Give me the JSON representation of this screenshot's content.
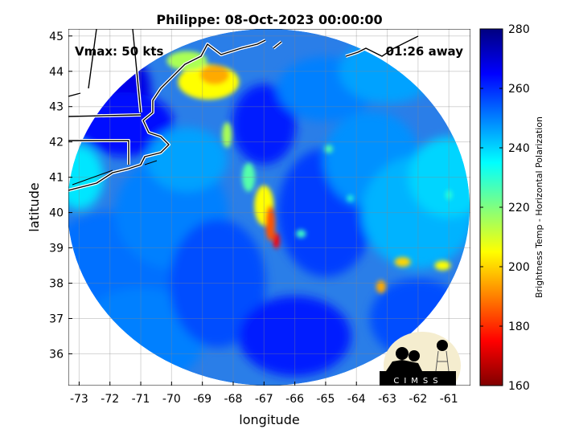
{
  "chart_data": {
    "type": "heatmap",
    "title": "Philippe: 08-Oct-2023 00:00:00",
    "xlabel": "longitude",
    "ylabel": "latitude",
    "xlim": [
      -73.35,
      -60.3
    ],
    "ylim": [
      35.1,
      45.2
    ],
    "xticks": [
      -73,
      -72,
      -71,
      -70,
      -69,
      -68,
      -67,
      -66,
      -65,
      -64,
      -63,
      -62,
      -61
    ],
    "yticks": [
      36,
      37,
      38,
      39,
      40,
      41,
      42,
      43,
      44,
      45
    ],
    "grid": true,
    "annotations": {
      "vmax": "Vmax: 50 kts",
      "away": "01:26 away"
    },
    "colorbar": {
      "label": "Brightness Temp - Horizontal Polarization",
      "range": [
        160,
        280
      ],
      "ticks": [
        160,
        180,
        200,
        220,
        240,
        260,
        280
      ],
      "colormap": [
        "#800000",
        "#ff0000",
        "#ff8000",
        "#ffff00",
        "#80ff80",
        "#00ffff",
        "#0080ff",
        "#0000ff",
        "#000080"
      ]
    },
    "cold_features": [
      {
        "name": "storm band",
        "lon": -66.8,
        "lat": 39.8,
        "value": 180
      },
      {
        "name": "gulf of maine",
        "lon": -68.8,
        "lat": 43.8,
        "value": 200
      },
      {
        "name": "east cell 1",
        "lon": -63.2,
        "lat": 37.9,
        "value": 195
      },
      {
        "name": "east cell 2",
        "lon": -62.5,
        "lat": 38.6,
        "value": 200
      },
      {
        "name": "east cell 3",
        "lon": -61.2,
        "lat": 38.5,
        "value": 205
      }
    ],
    "logo": "CIMSS"
  }
}
